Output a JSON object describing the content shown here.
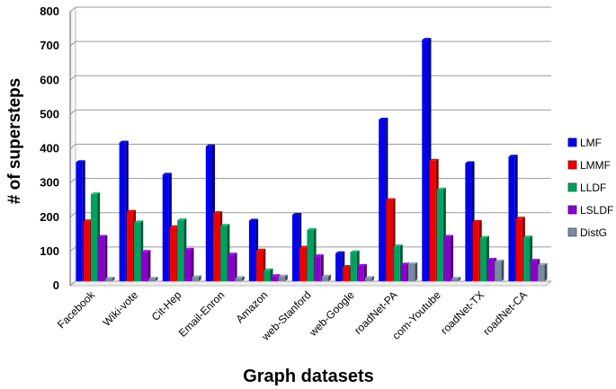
{
  "chart_data": {
    "type": "bar",
    "title": "",
    "xlabel": "Graph datasets",
    "ylabel": "# of supersteps",
    "ylim": [
      0,
      800
    ],
    "yticks": [
      0,
      100,
      200,
      300,
      400,
      500,
      600,
      700,
      800
    ],
    "grid": true,
    "legend_position": "right",
    "categories": [
      "Facebook",
      "Wiki-vote",
      "Cit-Hep",
      "Email-Enron",
      "Amazon",
      "web-Stanford",
      "web-Google",
      "roadNet-PA",
      "com-Youtube",
      "roadNet-TX",
      "roadNet-CA"
    ],
    "series": [
      {
        "name": "LMF",
        "color": "#0000ee",
        "values": [
          348,
          405,
          311,
          394,
          177,
          194,
          82,
          472,
          705,
          345,
          364
        ]
      },
      {
        "name": "LMMF",
        "color": "#ee0000",
        "values": [
          175,
          203,
          158,
          199,
          90,
          98,
          42,
          237,
          352,
          173,
          183
        ]
      },
      {
        "name": "LLDF",
        "color": "#00a060",
        "values": [
          254,
          172,
          178,
          162,
          32,
          150,
          85,
          102,
          268,
          127,
          128
        ]
      },
      {
        "name": "LSLDF",
        "color": "#8800cc",
        "values": [
          130,
          86,
          92,
          78,
          15,
          73,
          45,
          49,
          130,
          63,
          60
        ]
      },
      {
        "name": "DistG",
        "color": "#7a8aa0",
        "values": [
          8,
          8,
          12,
          10,
          14,
          14,
          10,
          50,
          8,
          58,
          48
        ]
      }
    ]
  }
}
